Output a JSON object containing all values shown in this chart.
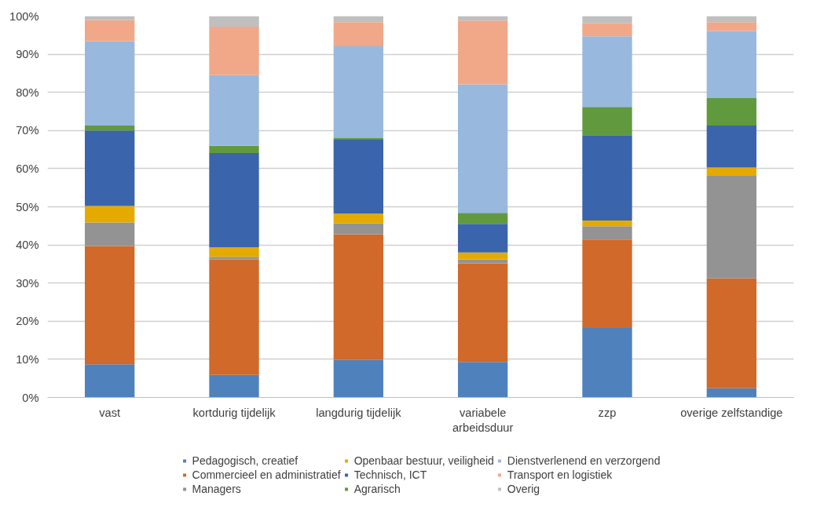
{
  "chart_data": {
    "type": "bar",
    "stacked": true,
    "categories": [
      "vast",
      "kortdurig tijdelijk",
      "langdurig tijdelijk",
      "variabele arbeidsduur",
      "zzp",
      "overige zelfstandige"
    ],
    "series": [
      {
        "name": "Pedagogisch, creatief",
        "color": "#4f81bd",
        "values": [
          8.7,
          5.9,
          9.8,
          9.3,
          18.2,
          2.4
        ]
      },
      {
        "name": "Commercieel en administratief",
        "color": "#d0692a",
        "values": [
          31.0,
          30.3,
          33.0,
          25.9,
          23.2,
          28.8
        ]
      },
      {
        "name": "Managers",
        "color": "#939393",
        "values": [
          6.2,
          0.7,
          2.9,
          1.0,
          3.5,
          27.1
        ]
      },
      {
        "name": "Openbaar bestuur, veiligheid",
        "color": "#e5aa00",
        "values": [
          4.3,
          2.5,
          2.5,
          1.8,
          1.5,
          2.0
        ]
      },
      {
        "name": "Technisch, ICT",
        "color": "#3a64ab",
        "values": [
          19.8,
          24.7,
          19.4,
          7.5,
          22.4,
          11.0
        ]
      },
      {
        "name": "Agrarisch",
        "color": "#619a3e",
        "values": [
          1.3,
          1.9,
          0.4,
          2.9,
          7.4,
          7.2
        ]
      },
      {
        "name": "Dienstverlenend en verzorgend",
        "color": "#98b8de",
        "values": [
          22.1,
          18.5,
          24.1,
          33.7,
          18.5,
          17.6
        ]
      },
      {
        "name": "Transport en logistiek",
        "color": "#f0a889",
        "values": [
          5.5,
          12.7,
          6.3,
          16.7,
          3.4,
          2.3
        ]
      },
      {
        "name": "Overig",
        "color": "#bfbfbf",
        "values": [
          1.1,
          2.8,
          1.6,
          1.2,
          1.9,
          1.6
        ]
      }
    ],
    "ylim": [
      0,
      100
    ],
    "yticks": [
      {
        "value": 0,
        "label": "0%"
      },
      {
        "value": 10,
        "label": "10%"
      },
      {
        "value": 20,
        "label": "20%"
      },
      {
        "value": 30,
        "label": "30%"
      },
      {
        "value": 40,
        "label": "40%"
      },
      {
        "value": 50,
        "label": "50%"
      },
      {
        "value": 60,
        "label": "60%"
      },
      {
        "value": 70,
        "label": "70%"
      },
      {
        "value": 80,
        "label": "80%"
      },
      {
        "value": 90,
        "label": "90%"
      },
      {
        "value": 100,
        "label": "100%"
      }
    ],
    "grid": "y",
    "legend": "bottom"
  }
}
